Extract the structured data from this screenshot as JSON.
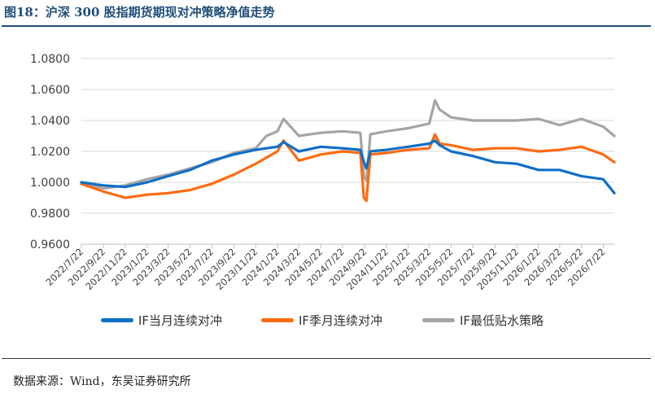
{
  "header": {
    "title": "图18：沪深 300 股指期货期现对冲策略净值走势"
  },
  "footer": {
    "source": "数据来源：Wind，东吴证券研究所"
  },
  "colors": {
    "title_blue": "#1f4e79",
    "series1": "#0f6fc6",
    "series2": "#ff6a10",
    "series3": "#a5a5a5",
    "grid": "#d9d9d9"
  },
  "chart_data": {
    "type": "line",
    "title": "",
    "xlabel": "",
    "ylabel": "",
    "ylim": [
      0.96,
      1.08
    ],
    "y_ticks": [
      "1.0800",
      "1.0600",
      "1.0400",
      "1.0200",
      "1.0000",
      "0.9800",
      "0.9600"
    ],
    "grid": "horizontal",
    "legend_position": "bottom",
    "x_ticks": [
      "2022/7/22",
      "2022/9/22",
      "2022/11/22",
      "2023/1/22",
      "2023/3/22",
      "2023/5/22",
      "2023/7/22",
      "2023/9/22",
      "2023/11/22",
      "2024/1/22",
      "2024/3/22",
      "2024/5/22",
      "2024/7/22",
      "2024/9/22",
      "2024/11/22",
      "2025/1/22",
      "2025/3/22",
      "2025/5/22",
      "2025/7/22",
      "2025/9/22",
      "2025/11/22",
      "2026/1/22",
      "2026/3/22",
      "2026/5/22",
      "2026/7/22"
    ],
    "x": [
      "2022/7/22",
      "2022/9/22",
      "2022/11/22",
      "2023/1/22",
      "2023/3/22",
      "2023/5/22",
      "2023/7/22",
      "2023/9/22",
      "2023/11/22",
      "2023/12/22",
      "2024/1/22",
      "2024/2/8",
      "2024/3/22",
      "2024/5/22",
      "2024/7/22",
      "2024/9/10",
      "2024/9/20",
      "2024/9/27",
      "2024/10/8",
      "2024/11/22",
      "2025/1/22",
      "2025/3/22",
      "2025/4/7",
      "2025/4/20",
      "2025/5/22",
      "2025/7/22",
      "2025/9/22",
      "2025/11/22",
      "2026/1/22",
      "2026/3/22",
      "2026/5/22",
      "2026/7/22",
      "2026/8/22"
    ],
    "series": [
      {
        "name": "IF当月连续对冲",
        "color": "#0f6fc6",
        "values": [
          1.0,
          0.998,
          0.997,
          1.0,
          1.004,
          1.008,
          1.014,
          1.018,
          1.021,
          1.022,
          1.023,
          1.026,
          1.02,
          1.023,
          1.022,
          1.021,
          1.013,
          1.009,
          1.02,
          1.021,
          1.023,
          1.025,
          1.027,
          1.024,
          1.02,
          1.017,
          1.013,
          1.012,
          1.008,
          1.008,
          1.004,
          1.002,
          0.993
        ]
      },
      {
        "name": "IF季月连续对冲",
        "color": "#ff6a10",
        "values": [
          0.999,
          0.994,
          0.99,
          0.992,
          0.993,
          0.995,
          0.999,
          1.005,
          1.012,
          1.016,
          1.02,
          1.027,
          1.014,
          1.018,
          1.02,
          1.019,
          0.99,
          0.988,
          1.018,
          1.019,
          1.021,
          1.022,
          1.031,
          1.025,
          1.024,
          1.021,
          1.022,
          1.022,
          1.02,
          1.021,
          1.023,
          1.018,
          1.013
        ]
      },
      {
        "name": "IF最低贴水策略",
        "color": "#a5a5a5",
        "values": [
          1.0,
          0.996,
          0.998,
          1.002,
          1.005,
          1.009,
          1.013,
          1.019,
          1.022,
          1.03,
          1.033,
          1.041,
          1.03,
          1.032,
          1.033,
          1.032,
          1.004,
          1.001,
          1.031,
          1.033,
          1.035,
          1.038,
          1.053,
          1.047,
          1.042,
          1.04,
          1.04,
          1.04,
          1.041,
          1.037,
          1.041,
          1.036,
          1.03
        ]
      }
    ]
  }
}
